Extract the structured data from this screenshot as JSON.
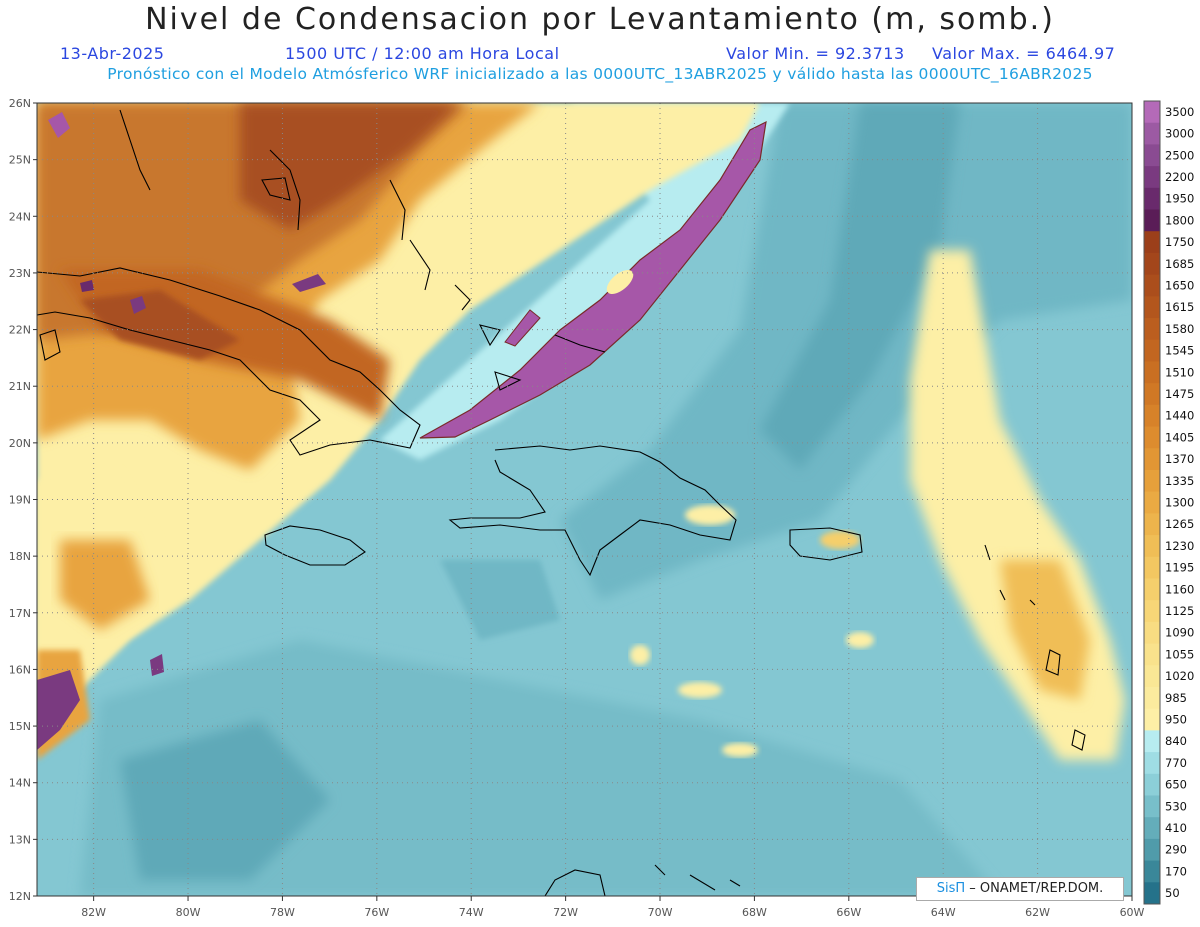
{
  "header": {
    "title": "Nivel de Condensacion por Levantamiento (m, somb.)",
    "date": "13-Abr-2025",
    "time": "1500 UTC / 12:00 am Hora Local",
    "min": "Valor Min. = 92.3713",
    "max": "Valor Max. = 6464.97",
    "forecast": "Pronóstico con el Modelo Atmósferico WRF inicializado a las 0000UTC_13ABR2025 y válido hasta las  0000UTC_16ABR2025"
  },
  "axes": {
    "lon_labels": [
      "82W",
      "80W",
      "78W",
      "76W",
      "74W",
      "72W",
      "70W",
      "68W",
      "66W",
      "64W",
      "62W",
      "60W"
    ],
    "lat_labels": [
      "26N",
      "25N",
      "24N",
      "23N",
      "22N",
      "21N",
      "20N",
      "19N",
      "18N",
      "17N",
      "16N",
      "15N",
      "14N",
      "13N",
      "12N"
    ],
    "lon_range": [
      -83.2,
      -60.0
    ],
    "lat_range": [
      12.0,
      26.0
    ]
  },
  "colorbar": {
    "labels": [
      "3500",
      "3000",
      "2500",
      "2200",
      "1950",
      "1800",
      "1750",
      "1685",
      "1650",
      "1615",
      "1580",
      "1545",
      "1510",
      "1475",
      "1440",
      "1405",
      "1370",
      "1335",
      "1300",
      "1265",
      "1230",
      "1195",
      "1160",
      "1125",
      "1090",
      "1055",
      "1020",
      "985",
      "950",
      "840",
      "770",
      "650",
      "530",
      "410",
      "290",
      "170",
      "50"
    ],
    "colors": [
      "#b46ab8",
      "#9c5aa3",
      "#8a4b92",
      "#7a3a80",
      "#692a6c",
      "#5a1d57",
      "#9b3f1a",
      "#a3461b",
      "#ab4e1c",
      "#b3561d",
      "#bb5e1f",
      "#c26620",
      "#c96f22",
      "#d07825",
      "#d78229",
      "#dd8c2e",
      "#e29634",
      "#e6a03b",
      "#eaaa43",
      "#edb44c",
      "#f0be56",
      "#f3c761",
      "#f5cf6c",
      "#f7d677",
      "#f8dc82",
      "#f9e28c",
      "#fae795",
      "#fbeb9e",
      "#fdefa6",
      "#b7ecf0",
      "#9fdde4",
      "#8ccfd8",
      "#78bfca",
      "#64adba",
      "#509baa",
      "#3a8799",
      "#25728a"
    ]
  },
  "credit": {
    "brand": "SisΠ",
    "text": " – ONAMET/REP.DOM."
  },
  "colors": {
    "sea": "#84c7d2",
    "sea_deep": "#5fa9b8",
    "dry_land": "#c8772f",
    "dry_dark": "#a84f22",
    "warm": "#f7d98a",
    "moist": "#fdefa6",
    "purple": "#a657a8"
  }
}
